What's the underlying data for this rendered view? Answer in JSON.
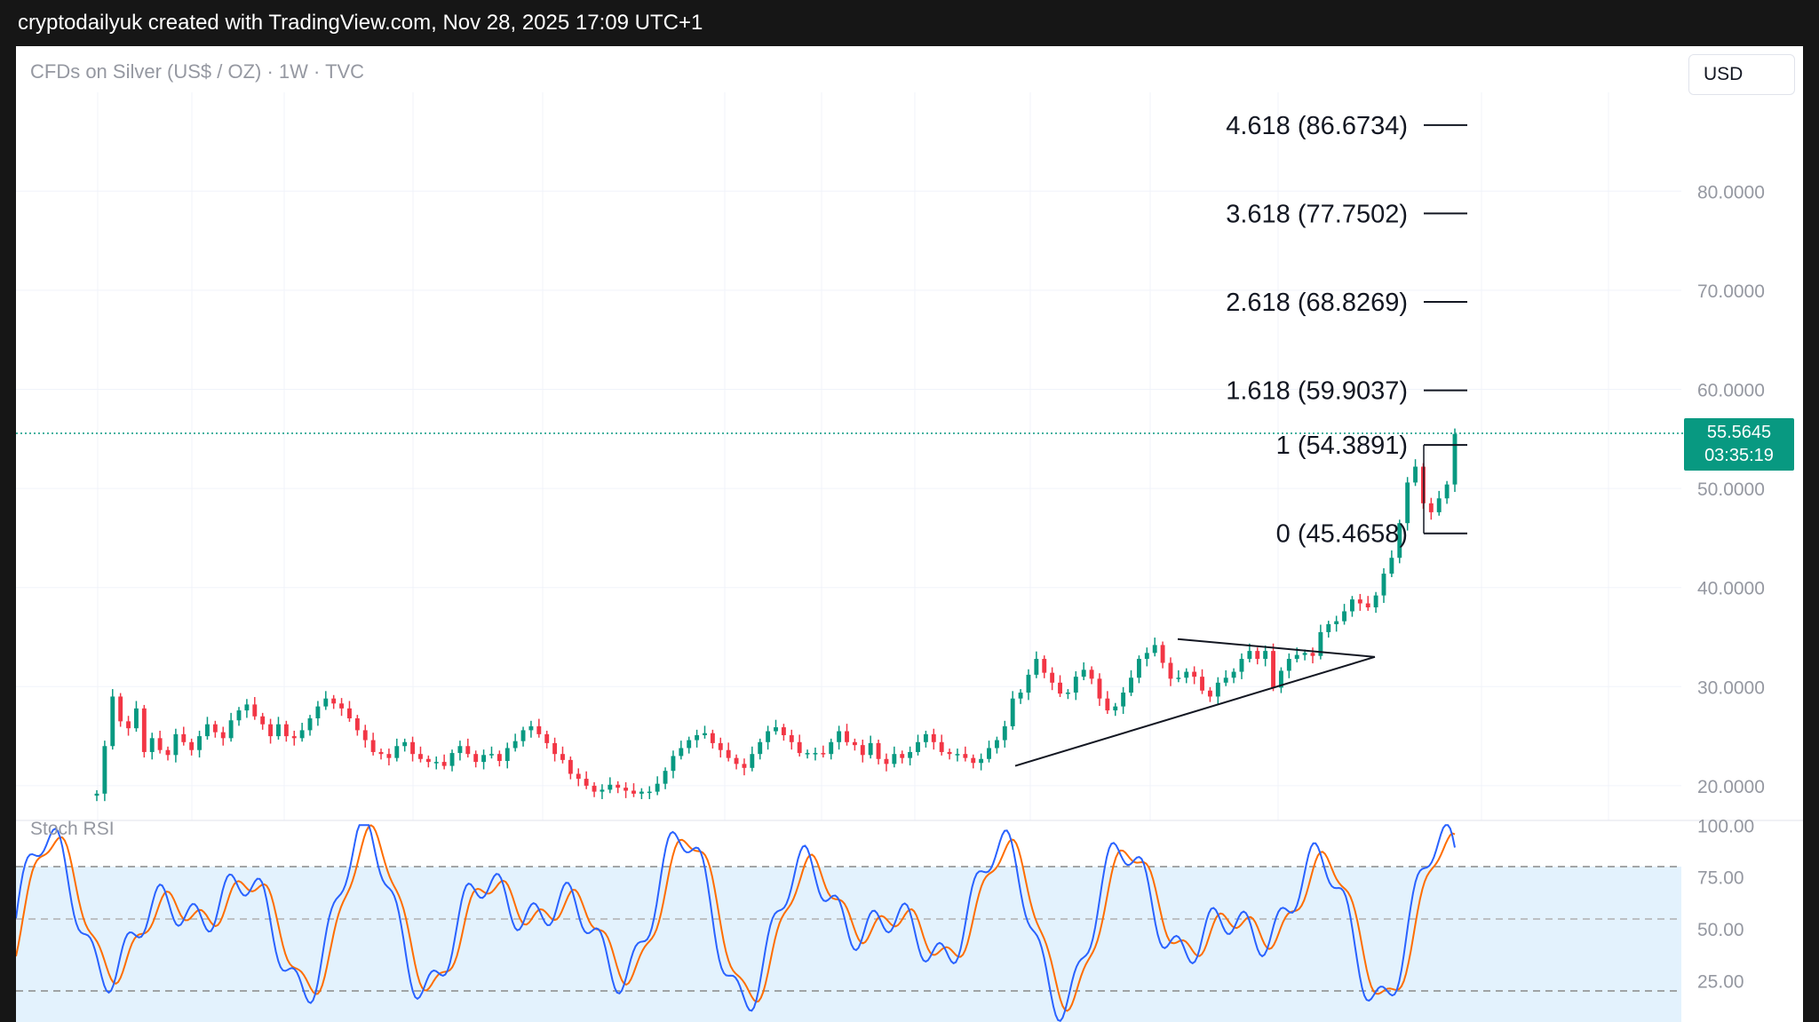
{
  "header": {
    "caption": "cryptodailyuk created with TradingView.com, Nov 28, 2025 17:09 UTC+1"
  },
  "chart": {
    "symbol_title": "CFDs on Silver (US$ / OZ) · 1W · TVC",
    "currency": "USD",
    "last_price": "55.5645",
    "countdown": "03:35:19",
    "colors": {
      "up": "#089981",
      "down": "#f23645",
      "stoch_k": "#2962ff",
      "stoch_d": "#ff6d00",
      "band_fill": "#e3f2fd",
      "price_line": "#089981"
    }
  },
  "chart_data": [
    {
      "type": "candlestick",
      "title": "CFDs on Silver (US$ / OZ) · 1W · TVC",
      "y_axis": {
        "labels": [
          "80.0000",
          "70.0000",
          "60.0000",
          "50.0000",
          "40.0000",
          "30.0000",
          "20.0000"
        ],
        "values": [
          80,
          70,
          60,
          50,
          40,
          30,
          20
        ],
        "range": [
          18.8,
          94.5
        ]
      },
      "last_value": 55.5645,
      "fib_levels": [
        {
          "label": "4.618 (86.6734)",
          "value": 86.6734
        },
        {
          "label": "3.618 (77.7502)",
          "value": 77.7502
        },
        {
          "label": "2.618 (68.8269)",
          "value": 68.8269
        },
        {
          "label": "1.618 (59.9037)",
          "value": 59.9037
        },
        {
          "label": "1 (54.3891)",
          "value": 54.3891
        },
        {
          "label": "0 (45.4658)",
          "value": 45.4658
        }
      ],
      "close_series": [
        19.2,
        24.0,
        29.0,
        26.5,
        25.8,
        27.8,
        23.4,
        24.8,
        23.6,
        23.1,
        25.2,
        24.4,
        23.6,
        25.0,
        26.2,
        25.4,
        24.8,
        26.6,
        27.6,
        28.2,
        27.0,
        26.2,
        25.0,
        26.2,
        25.0,
        24.8,
        25.6,
        26.8,
        28.0,
        28.8,
        28.3,
        27.8,
        26.8,
        25.6,
        24.6,
        23.4,
        23.2,
        22.8,
        24.0,
        24.4,
        23.2,
        22.7,
        22.4,
        22.4,
        22.0,
        23.3,
        24.0,
        23.2,
        22.4,
        23.1,
        23.2,
        22.5,
        23.8,
        24.5,
        25.6,
        26.0,
        25.2,
        24.3,
        23.2,
        22.6,
        21.2,
        20.7,
        20.0,
        19.4,
        19.6,
        20.1,
        19.8,
        19.5,
        19.2,
        19.4,
        19.4,
        20.2,
        21.5,
        23.0,
        23.8,
        24.6,
        25.1,
        25.3,
        24.3,
        23.6,
        22.8,
        22.2,
        21.8,
        23.2,
        24.4,
        25.5,
        25.9,
        25.1,
        24.4,
        23.3,
        23.3,
        23.3,
        23.2,
        24.4,
        25.5,
        24.4,
        24.1,
        23.1,
        24.3,
        22.7,
        22.2,
        23.2,
        22.8,
        23.4,
        24.4,
        25.2,
        24.4,
        23.4,
        23.2,
        23.2,
        22.8,
        22.3,
        22.7,
        23.8,
        24.6,
        26.0,
        28.8,
        29.4,
        31.2,
        32.8,
        31.4,
        30.4,
        29.3,
        29.4,
        31.0,
        31.7,
        30.8,
        28.8,
        27.6,
        28.0,
        29.4,
        30.9,
        32.8,
        33.4,
        34.2,
        32.4,
        30.8,
        30.9,
        31.5,
        31.0,
        29.6,
        29.0,
        30.4,
        30.9,
        31.5,
        32.8,
        33.6,
        32.8,
        33.6,
        29.9,
        31.6,
        32.8,
        33.2,
        33.4,
        33.1,
        35.5,
        36.3,
        36.6,
        37.6,
        38.8,
        38.4,
        38.0,
        39.2,
        41.4,
        43.0,
        46.5,
        50.6,
        52.2,
        48.5,
        47.6,
        49.0,
        50.4,
        55.5
      ]
    },
    {
      "type": "line",
      "title": "Stoch RSI",
      "y_axis": {
        "labels": [
          "100.00",
          "75.00",
          "50.00",
          "25.00"
        ],
        "values": [
          100,
          75,
          50,
          25
        ],
        "range": [
          8,
          100
        ]
      },
      "band": [
        20,
        80
      ],
      "midline": 50
    }
  ]
}
